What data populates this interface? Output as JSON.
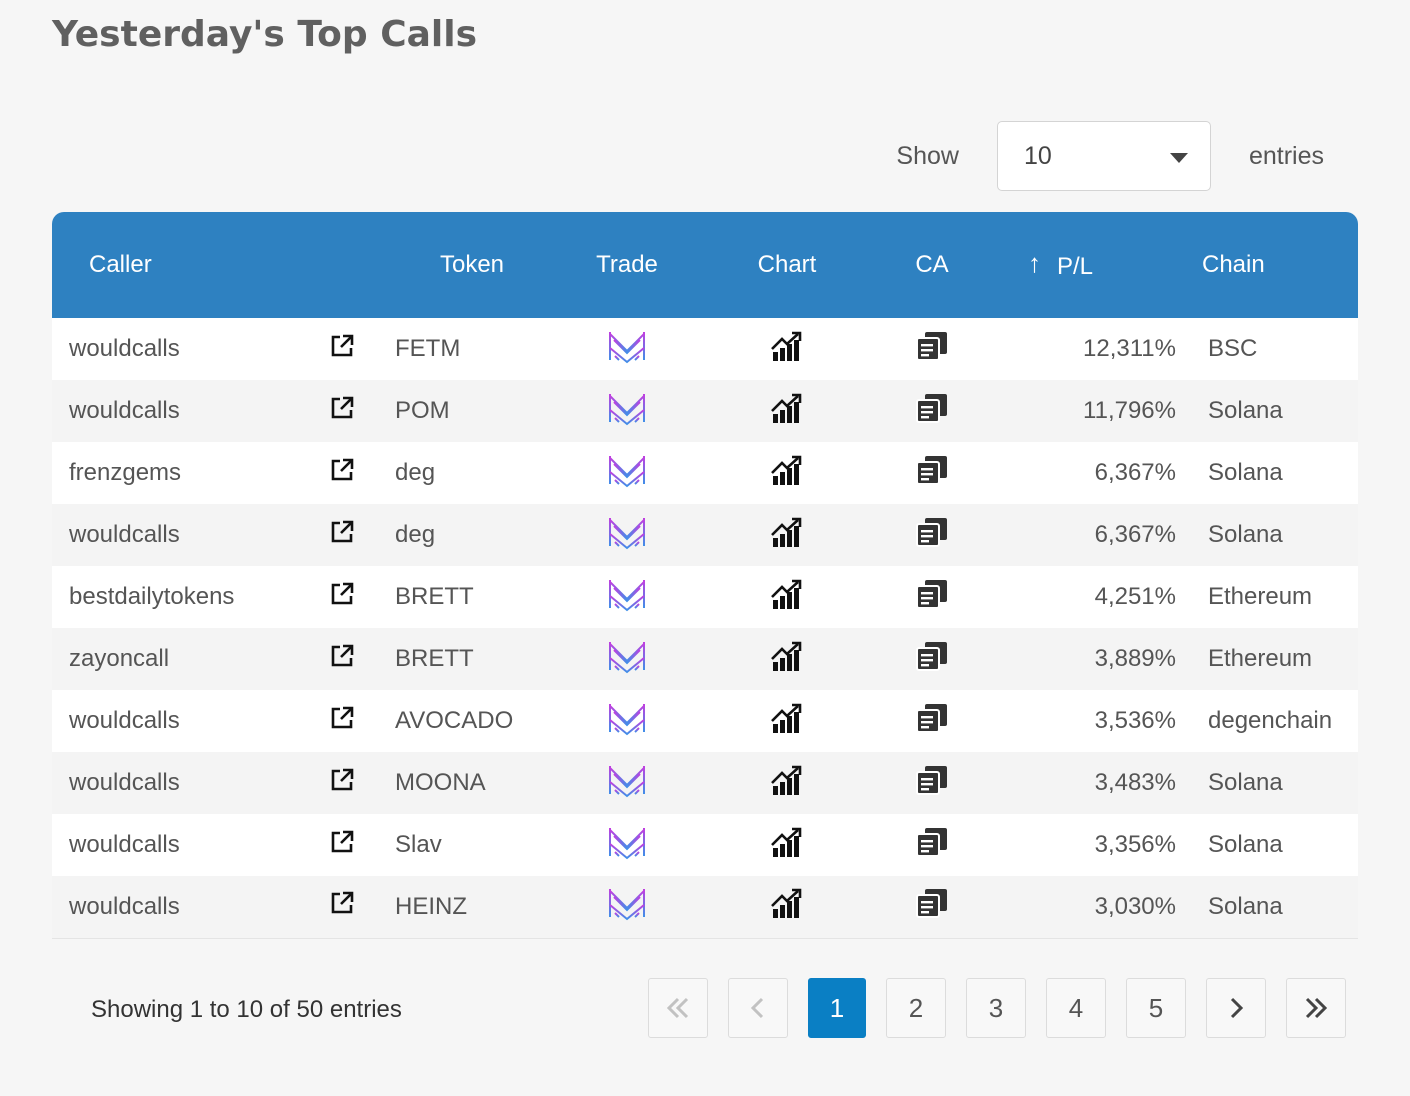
{
  "page": {
    "title": "Yesterday's Top Calls"
  },
  "length": {
    "show_label": "Show",
    "value": "10",
    "entries_label": "entries"
  },
  "table": {
    "headers": {
      "caller": "Caller",
      "token": "Token",
      "trade": "Trade",
      "chart": "Chart",
      "ca": "CA",
      "sort_arrow": "↑",
      "pl": "P/L",
      "chain": "Chain"
    },
    "rows": [
      {
        "caller": "wouldcalls",
        "token": "FETM",
        "pl": "12,311%",
        "chain": "BSC"
      },
      {
        "caller": "wouldcalls",
        "token": "POM",
        "pl": "11,796%",
        "chain": "Solana"
      },
      {
        "caller": "frenzgems",
        "token": "deg",
        "pl": "6,367%",
        "chain": "Solana"
      },
      {
        "caller": "wouldcalls",
        "token": "deg",
        "pl": "6,367%",
        "chain": "Solana"
      },
      {
        "caller": "bestdailytokens",
        "token": "BRETT",
        "pl": "4,251%",
        "chain": "Ethereum"
      },
      {
        "caller": "zayoncall",
        "token": "BRETT",
        "pl": "3,889%",
        "chain": "Ethereum"
      },
      {
        "caller": "wouldcalls",
        "token": "AVOCADO",
        "pl": "3,536%",
        "chain": "degenchain"
      },
      {
        "caller": "wouldcalls",
        "token": "MOONA",
        "pl": "3,483%",
        "chain": "Solana"
      },
      {
        "caller": "wouldcalls",
        "token": "Slav",
        "pl": "3,356%",
        "chain": "Solana"
      },
      {
        "caller": "wouldcalls",
        "token": "HEINZ",
        "pl": "3,030%",
        "chain": "Solana"
      }
    ]
  },
  "footer": {
    "info": "Showing 1 to 10 of 50 entries",
    "pages": [
      "1",
      "2",
      "3",
      "4",
      "5"
    ],
    "first_glyph": "«",
    "prev_glyph": "‹",
    "next_glyph": "›",
    "last_glyph": "»"
  },
  "colors": {
    "header_bg": "#2e81c1",
    "active_page": "#0a7fc4",
    "trade_icon_gradient": [
      "#c13fe0",
      "#3f8fe8"
    ]
  },
  "icons": {
    "caller_link": "external-link-icon",
    "trade": "trade-logo-icon",
    "chart": "chart-growth-icon",
    "ca": "copy-icon"
  }
}
